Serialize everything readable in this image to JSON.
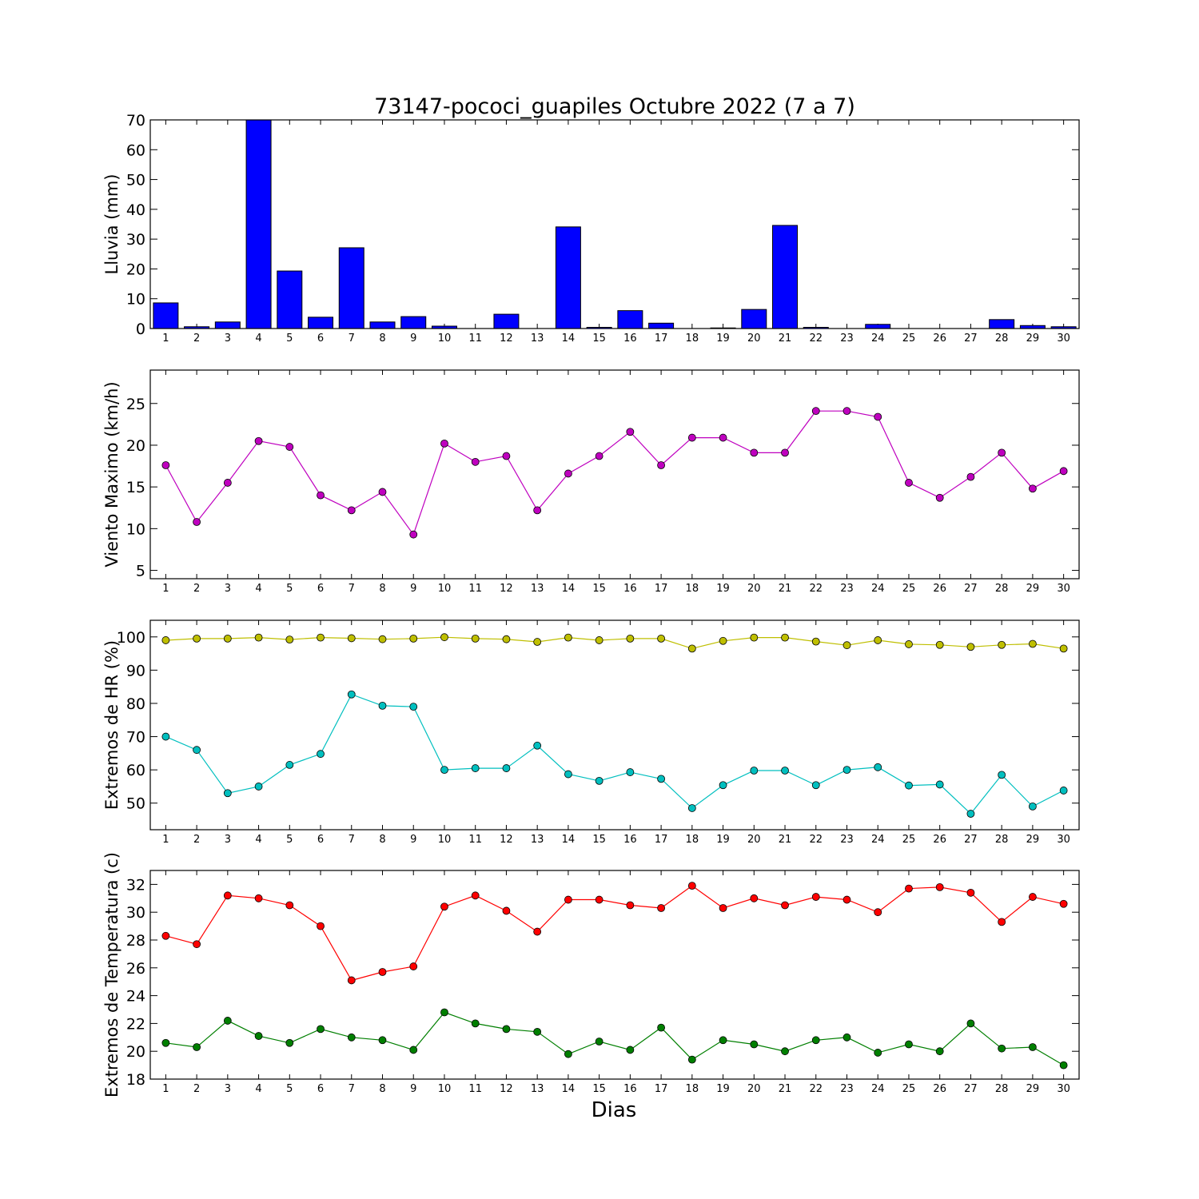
{
  "figure_title": "73147-pococi_guapiles Octubre 2022  (7 a 7)",
  "xlabel": "Dias",
  "chart_data": [
    {
      "type": "bar",
      "ylabel": "Lluvia (mm)",
      "ylim": [
        0,
        70
      ],
      "yticks": [
        "0",
        "10",
        "20",
        "30",
        "40",
        "50",
        "60",
        "70"
      ],
      "categories": [
        "1",
        "2",
        "3",
        "4",
        "5",
        "6",
        "7",
        "8",
        "9",
        "10",
        "11",
        "12",
        "13",
        "14",
        "15",
        "16",
        "17",
        "18",
        "19",
        "20",
        "21",
        "22",
        "23",
        "24",
        "25",
        "26",
        "27",
        "28",
        "29",
        "30"
      ],
      "series": [
        {
          "color": "#0000ff",
          "values": [
            8.6,
            0.6,
            2.2,
            70,
            19.3,
            3.8,
            27.1,
            2.2,
            4.0,
            0.8,
            0,
            4.8,
            0,
            34.1,
            0.4,
            6.0,
            1.8,
            0,
            0.2,
            6.4,
            34.6,
            0.4,
            0,
            1.4,
            0,
            0,
            0,
            3.0,
            1.0,
            0.6
          ]
        }
      ]
    },
    {
      "type": "line",
      "ylabel": "Viento Maximo (km/h)",
      "ylim": [
        4,
        29
      ],
      "yticks": [
        "5",
        "10",
        "15",
        "20",
        "25"
      ],
      "categories": [
        "1",
        "2",
        "3",
        "4",
        "5",
        "6",
        "7",
        "8",
        "9",
        "10",
        "11",
        "12",
        "13",
        "14",
        "15",
        "16",
        "17",
        "18",
        "19",
        "20",
        "21",
        "22",
        "23",
        "24",
        "25",
        "26",
        "27",
        "28",
        "29",
        "30"
      ],
      "series": [
        {
          "color": "#bf00bf",
          "values": [
            17.6,
            10.8,
            15.5,
            20.5,
            19.8,
            14.0,
            12.2,
            14.4,
            9.3,
            20.2,
            18.0,
            18.7,
            12.2,
            16.6,
            18.7,
            21.6,
            17.6,
            20.9,
            20.9,
            19.1,
            19.1,
            24.1,
            24.1,
            23.4,
            15.5,
            13.7,
            16.2,
            19.1,
            14.8,
            16.9
          ]
        }
      ]
    },
    {
      "type": "line",
      "ylabel": "Extremos de HR (%)",
      "ylim": [
        42,
        105
      ],
      "yticks": [
        "50",
        "60",
        "70",
        "80",
        "90",
        "100"
      ],
      "categories": [
        "1",
        "2",
        "3",
        "4",
        "5",
        "6",
        "7",
        "8",
        "9",
        "10",
        "11",
        "12",
        "13",
        "14",
        "15",
        "16",
        "17",
        "18",
        "19",
        "20",
        "21",
        "22",
        "23",
        "24",
        "25",
        "26",
        "27",
        "28",
        "29",
        "30"
      ],
      "series": [
        {
          "color": "#bfbf00",
          "values": [
            99.0,
            99.5,
            99.5,
            99.8,
            99.2,
            99.8,
            99.6,
            99.3,
            99.5,
            99.9,
            99.5,
            99.3,
            98.5,
            99.8,
            99.0,
            99.5,
            99.5,
            96.5,
            98.8,
            99.8,
            99.8,
            98.6,
            97.5,
            99.0,
            97.8,
            97.6,
            97.0,
            97.6,
            97.9,
            96.5
          ]
        },
        {
          "color": "#00bfbf",
          "values": [
            70.0,
            66.0,
            53.0,
            55.0,
            61.5,
            64.8,
            82.7,
            79.3,
            79.0,
            60.0,
            60.5,
            60.5,
            67.3,
            58.7,
            56.7,
            59.3,
            57.3,
            48.5,
            55.4,
            59.8,
            59.8,
            55.4,
            60.0,
            60.8,
            55.3,
            55.6,
            46.8,
            58.5,
            49.0,
            53.8
          ]
        }
      ]
    },
    {
      "type": "line",
      "ylabel": "Extremos de Temperatura (c)",
      "ylim": [
        18,
        33
      ],
      "yticks": [
        "18",
        "20",
        "22",
        "24",
        "26",
        "28",
        "30",
        "32"
      ],
      "categories": [
        "1",
        "2",
        "3",
        "4",
        "5",
        "6",
        "7",
        "8",
        "9",
        "10",
        "11",
        "12",
        "13",
        "14",
        "15",
        "16",
        "17",
        "18",
        "19",
        "20",
        "21",
        "22",
        "23",
        "24",
        "25",
        "26",
        "27",
        "28",
        "29",
        "30"
      ],
      "series": [
        {
          "color": "#ff0000",
          "values": [
            28.3,
            27.7,
            31.2,
            31.0,
            30.5,
            29.0,
            25.1,
            25.7,
            26.1,
            30.4,
            31.2,
            30.1,
            28.6,
            30.9,
            30.9,
            30.5,
            30.3,
            31.9,
            30.3,
            31.0,
            30.5,
            31.1,
            30.9,
            30.0,
            31.7,
            31.8,
            31.4,
            29.3,
            31.1,
            30.6
          ]
        },
        {
          "color": "#007f00",
          "values": [
            20.6,
            20.3,
            22.2,
            21.1,
            20.6,
            21.6,
            21.0,
            20.8,
            20.1,
            22.8,
            22.0,
            21.6,
            21.4,
            19.8,
            20.7,
            20.1,
            21.7,
            19.4,
            20.8,
            20.5,
            20.0,
            20.8,
            21.0,
            19.9,
            20.5,
            20.0,
            22.0,
            20.2,
            20.3,
            19.0
          ]
        }
      ]
    }
  ]
}
